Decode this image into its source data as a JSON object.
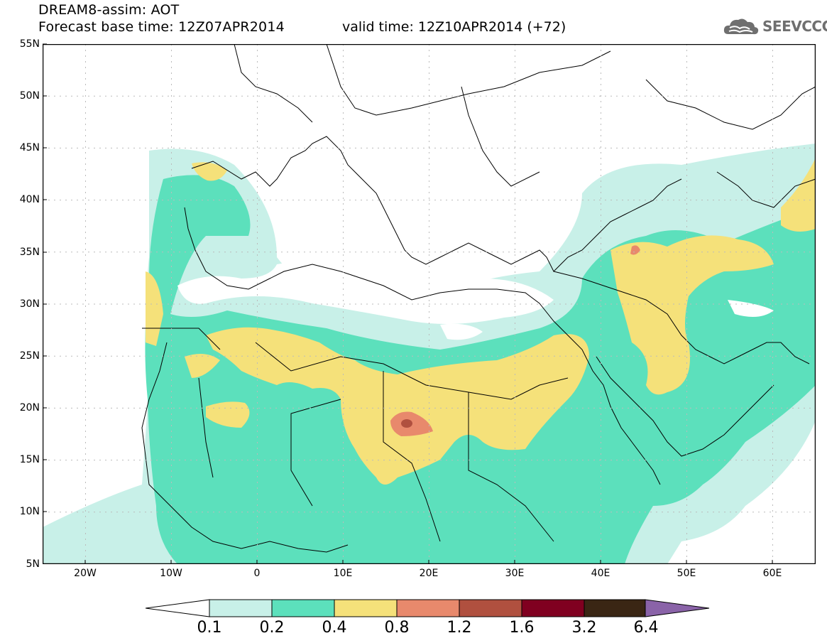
{
  "header": {
    "title": "DREAM8-assim: AOT",
    "base_time": "Forecast base time: 12Z07APR2014",
    "valid_time": "valid time: 12Z10APR2014 (+72)"
  },
  "logo": {
    "text": "SEEVCCC",
    "icon": "cloud-icon"
  },
  "axes": {
    "lat_labels": [
      "55N",
      "50N",
      "45N",
      "40N",
      "35N",
      "30N",
      "25N",
      "20N",
      "15N",
      "10N",
      "5N"
    ],
    "lon_labels": [
      "20W",
      "10W",
      "0",
      "10E",
      "20E",
      "30E",
      "40E",
      "50E",
      "60E"
    ],
    "lat_range": [
      5,
      55
    ],
    "lon_range": [
      -25,
      65
    ]
  },
  "legend": {
    "labels": [
      "0.1",
      "0.2",
      "0.4",
      "0.8",
      "1.2",
      "1.6",
      "3.2",
      "6.4"
    ],
    "colors": [
      "#ffffff",
      "#c8f0e8",
      "#5ce0bc",
      "#f5e17a",
      "#e8896c",
      "#b0503f",
      "#800020",
      "#3a2614",
      "#8a63a8"
    ]
  }
}
